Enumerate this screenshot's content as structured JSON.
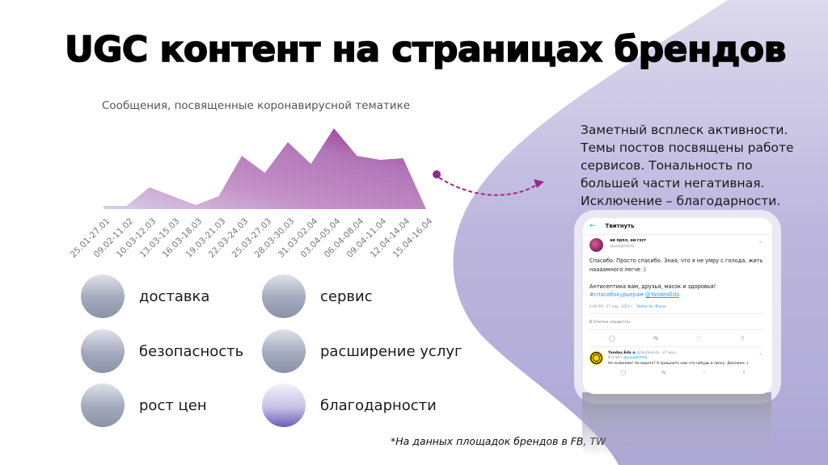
{
  "title": "UGC контент на страницах брендов",
  "colors": {
    "accent": "#8e2a8e",
    "blob": "#b3aed8",
    "area_light": "#cdbbe0",
    "area_dark": "#9b3a9a"
  },
  "chart_data": {
    "type": "area",
    "title": "Сообщения, посвященные коронавирусной тематике",
    "xlabel": "",
    "ylabel": "",
    "grid": false,
    "legend": "none",
    "categories": [
      "25.01-27.01",
      "09.02-11.02",
      "10.03-12.03",
      "13.03-15.03",
      "16.03-18.03",
      "19.03-21.03",
      "22.03-24.03",
      "25.03-27.03",
      "28.03-30.03",
      "31.03-02.04",
      "03.04-05.04",
      "06.04-08.04",
      "09.04-11.04",
      "12.04-14.04",
      "15.04-16.04"
    ],
    "values": [
      4,
      4,
      27,
      16,
      5,
      16,
      66,
      45,
      83,
      56,
      100,
      66,
      61,
      63,
      0
    ],
    "note": "relative values, no y-axis shown; read from area height (peak = 100)",
    "ylim": [
      0,
      100
    ]
  },
  "description": "Заметный всплеск активности. Темы постов посвящены работе сервисов. Тональность по большей части негативная. Исключение – благодарности.",
  "legend": [
    {
      "label": "доставка",
      "icon": "circle-gray"
    },
    {
      "label": "сервис",
      "icon": "circle-gray"
    },
    {
      "label": "безопасность",
      "icon": "circle-gray"
    },
    {
      "label": "расширение услуг",
      "icon": "circle-gray"
    },
    {
      "label": "рост цен",
      "icon": "circle-gray"
    },
    {
      "label": "благодарности",
      "icon": "circle-purple"
    }
  ],
  "footnote": "*На данных площадок брендов в  FB, TW",
  "tweet": {
    "header": "Твитнуть",
    "back_icon": "←",
    "author_name": "ни прпл, ни гхст",
    "author_handle": "@prplghstrdy",
    "text_1": "Спасибо. Просто спасибо. Зная, что я не умру с голода, жить наааамного легче :)",
    "text_2": "Антисептика вам, друзья, масок и здоровья!",
    "hashtag": "#спасибокурьерам",
    "mention": "@YandexEda",
    "time": "6:00 PM · 27 мар. 2020 г. · ",
    "source": "Twitter for iPhone",
    "likes_count": "5",
    "likes_label": " Отметки «Нравится»",
    "actions": [
      "reply-icon",
      "retweet-icon",
      "like-icon",
      "share-icon"
    ],
    "reply": {
      "name": "Yandex.Eda",
      "handle": "@YandexEda · 27 мар.",
      "in_reply": "В ответ ",
      "in_reply_handle": "@prplghstrdy",
      "text": "Не позволим! Не верите? А пришлите нам что-нибудь в личку. Докажем :)"
    }
  }
}
